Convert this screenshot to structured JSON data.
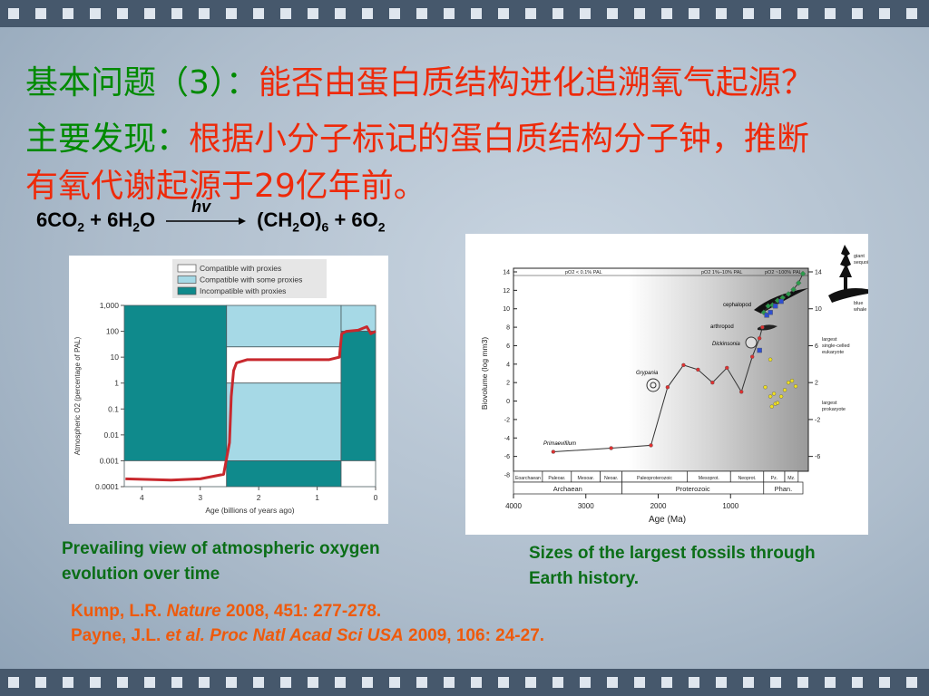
{
  "header": {
    "question_label": "基本问题（3）：",
    "question": "能否由蛋白质结构进化追溯氧气起源？",
    "finding_label": "主要发现：",
    "finding_lines": [
      "根据小分子标记的蛋白质结构分子钟，推断",
      "有氧代谢起源于29亿年前。"
    ]
  },
  "equation": {
    "left": [
      {
        "text": "6CO"
      },
      {
        "text": "2",
        "sub": true
      },
      {
        "text": " + 6H"
      },
      {
        "text": "2",
        "sub": true
      },
      {
        "text": "O"
      }
    ],
    "arrow_label": "hv",
    "right": [
      {
        "text": "(CH"
      },
      {
        "text": "2",
        "sub": true
      },
      {
        "text": "O)"
      },
      {
        "text": "6",
        "sub": true
      },
      {
        "text": " + 6O"
      },
      {
        "text": "2",
        "sub": true
      }
    ]
  },
  "chart_data": [
    {
      "type": "line",
      "log_y": true,
      "xlabel": "Age (billions of years ago)",
      "ylabel": "Atmospheric O2 (percentage of PAL)",
      "xlim": [
        4.3,
        0
      ],
      "xticks": [
        4,
        3,
        2,
        1,
        0
      ],
      "ylim": [
        0.0001,
        1000
      ],
      "yticks": [
        {
          "value": 1000,
          "label": "1,000"
        },
        100,
        10,
        1,
        0.1,
        0.01,
        0.001,
        0.0001
      ],
      "legend": [
        {
          "name": "Compatible with proxies",
          "color": "#ffffff"
        },
        {
          "name": "Compatible with some proxies",
          "color": "#a6d9e6"
        },
        {
          "name": "Incompatible with proxies",
          "color": "#0f8a8c"
        }
      ],
      "regions": [
        {
          "x": [
            4.3,
            2.55
          ],
          "y": [
            0.001,
            1000
          ],
          "legend": 2
        },
        {
          "x": [
            4.3,
            2.55
          ],
          "y": [
            0.0001,
            0.001
          ],
          "legend": 0
        },
        {
          "x": [
            2.55,
            0.59
          ],
          "y": [
            25,
            1000
          ],
          "legend": 1
        },
        {
          "x": [
            2.55,
            0.59
          ],
          "y": [
            1,
            25
          ],
          "legend": 0
        },
        {
          "x": [
            2.55,
            0.59
          ],
          "y": [
            0.001,
            1
          ],
          "legend": 1
        },
        {
          "x": [
            2.55,
            0.59
          ],
          "y": [
            0.0001,
            0.001
          ],
          "legend": 2
        },
        {
          "x": [
            0.59,
            0
          ],
          "y": [
            100,
            1000
          ],
          "legend": 1
        },
        {
          "x": [
            0.59,
            0
          ],
          "y": [
            0.001,
            100
          ],
          "legend": 2
        },
        {
          "x": [
            0.59,
            0
          ],
          "y": [
            0.0001,
            0.001
          ],
          "legend": 0
        }
      ],
      "series": [
        {
          "color": "#c8282d",
          "x": [
            4.28,
            3.5,
            3.0,
            2.6,
            2.5,
            2.47,
            2.43,
            2.38,
            2.2,
            1.5,
            0.8,
            0.62,
            0.58,
            0.5,
            0.3,
            0.15,
            0.08,
            0
          ],
          "values": [
            0.0002,
            0.00018,
            0.0002,
            0.0003,
            0.005,
            0.3,
            3,
            6,
            8,
            8,
            8,
            10,
            80,
            100,
            110,
            150,
            80,
            100
          ]
        }
      ]
    },
    {
      "type": "scatter",
      "xlabel": "Age (Ma)",
      "ylabel": "Biovolume (log mm3)",
      "xlim": [
        4000,
        0
      ],
      "xticks": [
        4000,
        3000,
        2000,
        1000
      ],
      "ylim": [
        -8,
        14
      ],
      "yticks": [
        14,
        12,
        10,
        8,
        6,
        4,
        2,
        0,
        -2,
        -4,
        -6,
        -8
      ],
      "y2lim": [
        -8,
        14
      ],
      "y2ticks": [
        14,
        10,
        6,
        2,
        -2,
        -6
      ],
      "oxygen_labels": [
        "pO2 < 0.1% PAL",
        "pO2 1%–10% PAL",
        "pO2 ~100% PAL"
      ],
      "eras": [
        {
          "name": "Eoarchaean",
          "x": [
            4000,
            3600
          ]
        },
        {
          "name": "Paleoar.",
          "x": [
            3600,
            3200
          ]
        },
        {
          "name": "Mesoar.",
          "x": [
            3200,
            2800
          ]
        },
        {
          "name": "Neoar.",
          "x": [
            2800,
            2500
          ]
        },
        {
          "name": "Paleoproterozoic",
          "x": [
            2500,
            1600
          ]
        },
        {
          "name": "Mesoprot.",
          "x": [
            1600,
            1000
          ]
        },
        {
          "name": "Neoprot.",
          "x": [
            1000,
            542
          ]
        },
        {
          "name": "Pz.",
          "x": [
            542,
            251
          ]
        },
        {
          "name": "Mz.",
          "x": [
            251,
            65
          ]
        }
      ],
      "eons": [
        {
          "name": "Archaean",
          "x": [
            4000,
            2500
          ]
        },
        {
          "name": "Proterozoic",
          "x": [
            2500,
            542
          ]
        },
        {
          "name": "Phan.",
          "x": [
            542,
            0
          ]
        }
      ],
      "annotations": [
        "Primaevifilum",
        "Grypania",
        "Dickinsonia",
        "arthropod",
        "cephalopod"
      ],
      "side_labels": [
        [
          "giant",
          "sequoia"
        ],
        [
          "blue",
          "whale"
        ],
        [
          "largest",
          "single-celled",
          "eukaryote"
        ],
        [
          "largest",
          "prokaryote"
        ]
      ],
      "series": [
        {
          "line": true,
          "color": "#333333",
          "marker": "dot",
          "marker_color": "#e03030",
          "x": [
            3450,
            2650,
            2100,
            1870,
            1650,
            1450,
            1250,
            1050,
            850,
            700,
            600,
            560
          ],
          "values": [
            -5.5,
            -5.1,
            -4.8,
            1.5,
            3.9,
            3.4,
            2.0,
            3.6,
            1.0,
            4.8,
            6.8,
            8.0
          ]
        },
        {
          "line": true,
          "color": "#333333",
          "marker": "diamond",
          "marker_color": "#2a9a4a",
          "x": [
            540,
            480,
            420,
            350,
            280,
            200,
            130,
            60,
            0
          ],
          "values": [
            9.6,
            10.3,
            10.4,
            10.9,
            11.2,
            11.6,
            12.1,
            12.8,
            13.8
          ]
        },
        {
          "line": false,
          "marker": "square",
          "marker_color": "#2f4fd0",
          "x": [
            600,
            500,
            450,
            380,
            300
          ],
          "values": [
            5.5,
            9.3,
            9.6,
            10.3,
            10.8
          ]
        },
        {
          "line": false,
          "marker": "dot",
          "marker_color": "#f0e020",
          "x": [
            520,
            450,
            430,
            400,
            380,
            350,
            300,
            250,
            200,
            150,
            100,
            450
          ],
          "values": [
            1.5,
            0.5,
            -0.6,
            0.8,
            -0.3,
            -0.2,
            0.5,
            1.2,
            2.0,
            2.2,
            1.6,
            4.5
          ]
        }
      ]
    }
  ],
  "captions": [
    "Prevailing view of atmospheric oxygen evolution over time",
    "Sizes of the largest fossils through Earth history."
  ],
  "references": [
    [
      {
        "text": "Kump, L.R. "
      },
      {
        "text": "Nature",
        "italic": true
      },
      {
        "text": " 2008, 451: 277-278."
      }
    ],
    [
      {
        "text": "Payne, J.L. "
      },
      {
        "text": "et al. Proc Natl Acad Sci USA",
        "italic": true
      },
      {
        "text": " 2009, 106: 24-27."
      }
    ]
  ]
}
